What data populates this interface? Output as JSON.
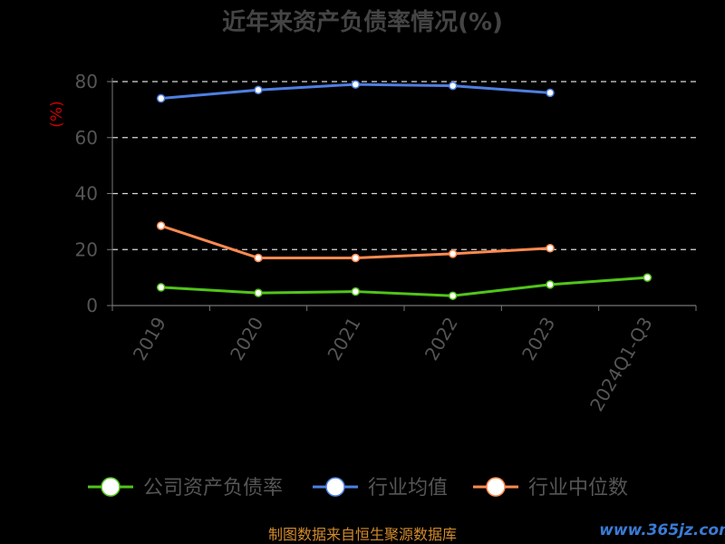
{
  "chart_data": {
    "type": "line",
    "title": "近年来资产负债率情况(%)",
    "ylabel": "(%)",
    "xlabel": "",
    "categories": [
      "2019",
      "2020",
      "2021",
      "2022",
      "2023",
      "2024Q1-Q3"
    ],
    "ylim": [
      0,
      80
    ],
    "yticks": [
      0,
      20,
      40,
      60,
      80
    ],
    "grid": true,
    "legend_position": "bottom",
    "series": [
      {
        "name": "公司资产负债率",
        "color": "#52c41a",
        "values": [
          6.5,
          4.5,
          5.0,
          3.5,
          7.5,
          10.0
        ]
      },
      {
        "name": "行业均值",
        "color": "#4f7fe0",
        "values": [
          74.0,
          77.0,
          79.0,
          78.5,
          76.0,
          null
        ]
      },
      {
        "name": "行业中位数",
        "color": "#ff8a50",
        "values": [
          28.5,
          17.0,
          17.0,
          18.5,
          20.5,
          null
        ]
      }
    ]
  },
  "footer": {
    "source": "制图数据来自恒生聚源数据库",
    "watermark": "www.365jz.com"
  }
}
